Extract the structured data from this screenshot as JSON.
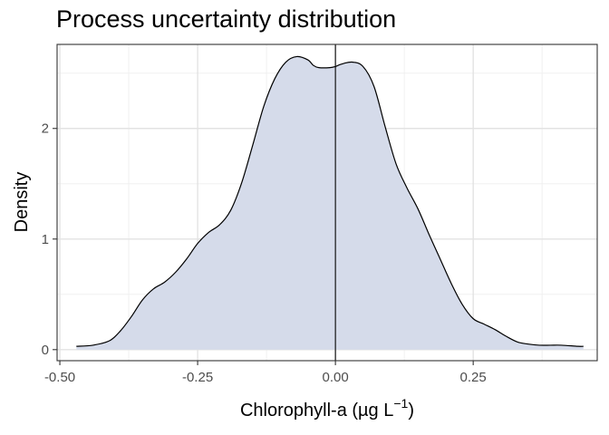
{
  "chart_data": {
    "type": "area",
    "title": "Process uncertainty distribution",
    "xlabel": "Chlorophyll-a (µg L",
    "xlabel_superscript": "−1",
    "xlabel_suffix": ")",
    "ylabel": "Density",
    "xlim": [
      -0.505,
      0.475
    ],
    "ylim": [
      -0.1,
      2.76
    ],
    "x_ticks": [
      -0.5,
      -0.25,
      0.0,
      0.25
    ],
    "x_tick_labels": [
      "-0.50",
      "-0.25",
      "0.00",
      "0.25"
    ],
    "y_ticks": [
      0,
      1,
      2
    ],
    "y_tick_labels": [
      "0",
      "1",
      "2"
    ],
    "grid": true,
    "vline_x": 0.0,
    "fill_color": "#d5dbea",
    "line_color": "#000000",
    "x": [
      -0.47,
      -0.44,
      -0.41,
      -0.39,
      -0.37,
      -0.35,
      -0.33,
      -0.31,
      -0.29,
      -0.27,
      -0.25,
      -0.23,
      -0.21,
      -0.19,
      -0.17,
      -0.15,
      -0.13,
      -0.11,
      -0.09,
      -0.07,
      -0.05,
      -0.04,
      -0.03,
      -0.01,
      0.0,
      0.01,
      0.03,
      0.05,
      0.07,
      0.09,
      0.11,
      0.13,
      0.15,
      0.17,
      0.19,
      0.21,
      0.23,
      0.25,
      0.27,
      0.29,
      0.31,
      0.33,
      0.35,
      0.37,
      0.39,
      0.41,
      0.44,
      0.45
    ],
    "y": [
      0.03,
      0.04,
      0.08,
      0.17,
      0.3,
      0.45,
      0.55,
      0.61,
      0.7,
      0.82,
      0.96,
      1.06,
      1.13,
      1.26,
      1.51,
      1.85,
      2.2,
      2.45,
      2.6,
      2.65,
      2.62,
      2.57,
      2.55,
      2.55,
      2.56,
      2.58,
      2.6,
      2.56,
      2.38,
      2.02,
      1.68,
      1.46,
      1.27,
      1.04,
      0.82,
      0.6,
      0.41,
      0.28,
      0.23,
      0.18,
      0.12,
      0.07,
      0.05,
      0.04,
      0.04,
      0.04,
      0.03,
      0.03
    ]
  }
}
